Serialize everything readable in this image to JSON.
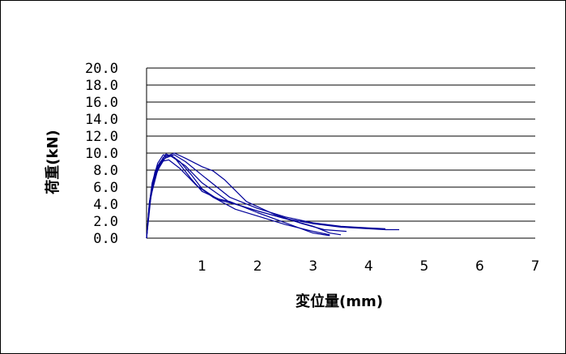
{
  "chart_data": {
    "type": "line",
    "xlabel": "変位量(mm)",
    "ylabel": "荷重(kN)",
    "xlim": [
      0,
      7
    ],
    "ylim": [
      0,
      20
    ],
    "x_ticks": [
      "1",
      "2",
      "3",
      "4",
      "5",
      "6",
      "7"
    ],
    "y_ticks": [
      "0.0",
      "2.0",
      "4.0",
      "6.0",
      "8.0",
      "10.0",
      "12.0",
      "14.0",
      "16.0",
      "18.0",
      "20.0"
    ],
    "grid": "horizontal",
    "legend": "none",
    "series_color": "#000099",
    "series": [
      {
        "x": [
          0,
          0.05,
          0.1,
          0.2,
          0.3,
          0.45,
          0.7,
          1.0,
          1.5,
          2.0,
          2.5,
          3.0,
          3.5,
          4.0,
          4.3,
          4.55
        ],
        "y": [
          0,
          4.0,
          6.5,
          8.8,
          9.8,
          9.6,
          8.5,
          6.5,
          4.2,
          3.2,
          2.3,
          1.7,
          1.3,
          1.1,
          1.0,
          1.0
        ]
      },
      {
        "x": [
          0,
          0.05,
          0.1,
          0.2,
          0.35,
          0.5,
          0.8,
          1.0,
          1.3,
          1.5,
          2.0,
          2.5,
          3.0,
          3.3
        ],
        "y": [
          0,
          3.5,
          6.0,
          8.5,
          9.9,
          9.5,
          7.0,
          5.5,
          4.6,
          4.3,
          3.0,
          1.8,
          0.6,
          0.3
        ]
      },
      {
        "x": [
          0,
          0.05,
          0.15,
          0.3,
          0.5,
          0.7,
          1.0,
          1.2,
          1.4,
          1.8,
          2.3,
          2.8,
          3.2,
          3.6
        ],
        "y": [
          0,
          4.0,
          7.5,
          9.5,
          10.0,
          9.4,
          8.4,
          7.9,
          6.9,
          4.3,
          2.8,
          1.7,
          1.0,
          0.8
        ]
      },
      {
        "x": [
          0,
          0.08,
          0.2,
          0.35,
          0.5,
          0.7,
          1.0,
          1.5,
          2.0,
          2.5,
          3.0,
          3.5,
          4.0,
          4.3
        ],
        "y": [
          0,
          5.0,
          8.0,
          9.6,
          9.8,
          9.0,
          7.4,
          4.8,
          3.5,
          2.5,
          1.8,
          1.4,
          1.2,
          1.1
        ]
      },
      {
        "x": [
          0,
          0.05,
          0.15,
          0.3,
          0.45,
          0.6,
          0.8,
          1.0,
          1.3,
          1.6,
          2.0,
          2.5,
          3.0,
          3.3,
          3.5
        ],
        "y": [
          0,
          3.8,
          7.2,
          9.3,
          9.7,
          9.0,
          7.5,
          5.8,
          4.5,
          4.0,
          3.2,
          2.3,
          1.4,
          0.6,
          0.4
        ]
      },
      {
        "x": [
          0,
          0.05,
          0.15,
          0.25,
          0.4,
          0.6,
          0.9,
          1.2,
          1.6,
          2.0,
          2.5,
          3.0,
          3.3
        ],
        "y": [
          0,
          4.2,
          7.8,
          9.0,
          9.2,
          8.2,
          6.2,
          4.8,
          3.4,
          2.6,
          1.6,
          0.8,
          0.4
        ]
      }
    ]
  }
}
